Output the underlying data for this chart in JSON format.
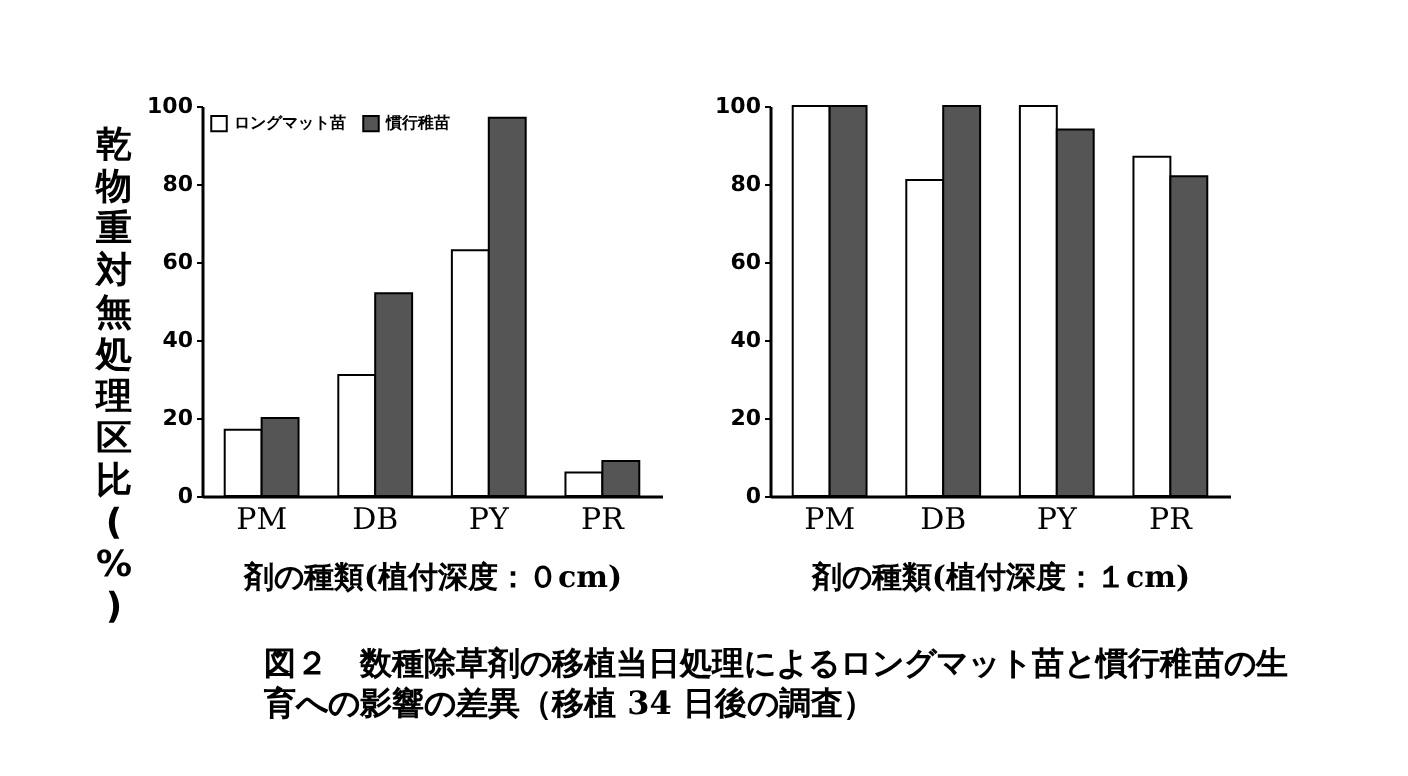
{
  "chart_data": [
    {
      "type": "bar",
      "ylabel": "乾物重対無処理区比(%)",
      "xlabel": "剤の種類(植付深度：０cm)",
      "categories": [
        "PM",
        "DB",
        "PY",
        "PR"
      ],
      "ylim": [
        0,
        100
      ],
      "yticks": [
        0,
        20,
        40,
        60,
        80,
        100
      ],
      "legend": "top left",
      "series": [
        {
          "name": "ロングマット苗",
          "color": "#ffffff",
          "values": [
            17,
            31,
            63,
            6
          ]
        },
        {
          "name": "慣行稚苗",
          "color": "#555555",
          "values": [
            20,
            52,
            97,
            9
          ]
        }
      ],
      "annotations": [
        "図２　数種除草剤の移植当日処理によるロングマット苗と慣行稚苗の生育への影響の差異（移植 34 日後の調査）"
      ]
    },
    {
      "type": "bar",
      "xlabel": "剤の種類(植付深度：１cm)",
      "categories": [
        "PM",
        "DB",
        "PY",
        "PR"
      ],
      "ylim": [
        0,
        100
      ],
      "yticks": [
        0,
        20,
        40,
        60,
        80,
        100
      ],
      "series": [
        {
          "color": "#ffffff",
          "values": [
            100,
            81,
            100,
            87
          ]
        },
        {
          "color": "#555555",
          "values": [
            100,
            100,
            94,
            82
          ]
        }
      ]
    }
  ]
}
